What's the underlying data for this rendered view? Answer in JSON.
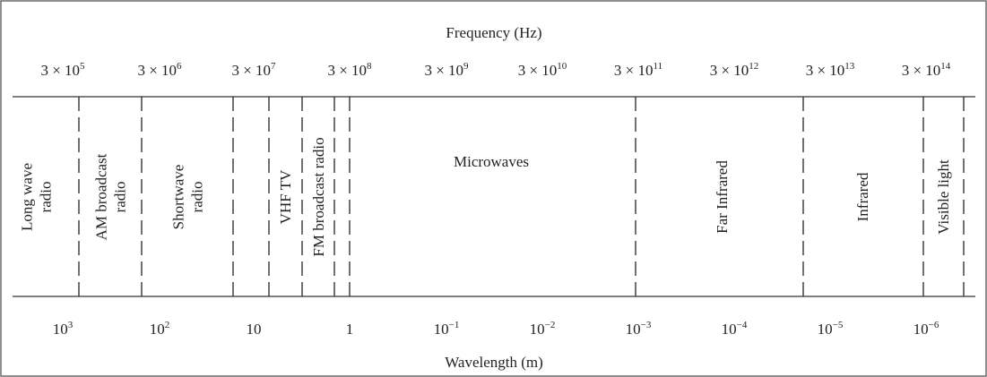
{
  "diagram": {
    "frequency_axis": {
      "title": "Frequency (Hz)",
      "ticks": [
        {
          "base": "3 × 10",
          "exp": "5"
        },
        {
          "base": "3 × 10",
          "exp": "6"
        },
        {
          "base": "3 × 10",
          "exp": "7"
        },
        {
          "base": "3 × 10",
          "exp": "8"
        },
        {
          "base": "3 × 10",
          "exp": "9"
        },
        {
          "base": "3 × 10",
          "exp": "10"
        },
        {
          "base": "3 × 10",
          "exp": "11"
        },
        {
          "base": "3 × 10",
          "exp": "12"
        },
        {
          "base": "3 × 10",
          "exp": "13"
        },
        {
          "base": "3 × 10",
          "exp": "14"
        }
      ]
    },
    "wavelength_axis": {
      "title": "Wavelength (m)",
      "ticks": [
        {
          "base": "10",
          "exp": "3"
        },
        {
          "base": "10",
          "exp": "2"
        },
        {
          "base": "10",
          "exp": ""
        },
        {
          "base": "1",
          "exp": ""
        },
        {
          "base": "10",
          "exp": "−1"
        },
        {
          "base": "10",
          "exp": "−2"
        },
        {
          "base": "10",
          "exp": "−3"
        },
        {
          "base": "10",
          "exp": "−4"
        },
        {
          "base": "10",
          "exp": "−5"
        },
        {
          "base": "10",
          "exp": "−6"
        }
      ]
    },
    "bands": [
      {
        "lines": [
          "Long wave",
          "radio"
        ]
      },
      {
        "lines": [
          "AM broadcast",
          "radio"
        ]
      },
      {
        "lines": [
          "Shortwave",
          "radio"
        ]
      },
      {
        "lines": [
          "VHF TV"
        ]
      },
      {
        "lines": [
          "FM broadcast radio"
        ]
      },
      {
        "lines": [
          "Microwaves"
        ]
      },
      {
        "lines": [
          "Far Infrared"
        ]
      },
      {
        "lines": [
          "Infrared"
        ]
      },
      {
        "lines": [
          "Visible light"
        ]
      }
    ]
  }
}
